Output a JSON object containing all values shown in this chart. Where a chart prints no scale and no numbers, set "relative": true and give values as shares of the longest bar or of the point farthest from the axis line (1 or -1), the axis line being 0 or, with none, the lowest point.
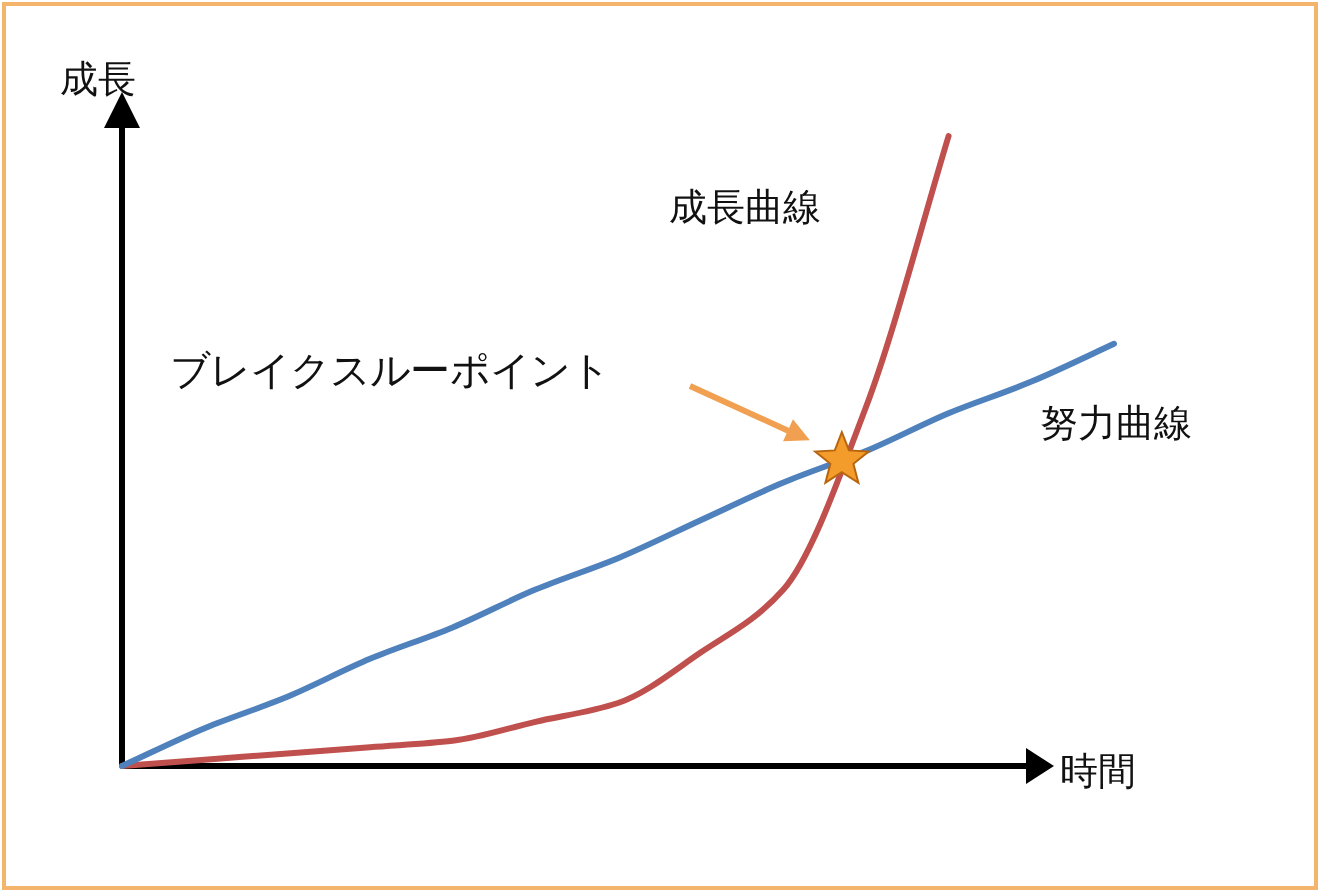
{
  "chart_data": {
    "type": "line",
    "xlabel": "時間",
    "ylabel": "成長",
    "annotations": [
      "ブレイクスルーポイント"
    ],
    "categories": [
      null,
      null,
      null,
      null,
      null,
      null,
      null,
      null,
      null,
      null,
      null,
      null,
      null
    ],
    "relative": true,
    "legend": false,
    "grid": false,
    "line_style": "solid",
    "marker": "none",
    "series": [
      {
        "name": "成長曲線",
        "color": "#c0504d",
        "values": [
          0,
          0.01,
          0.02,
          0.03,
          0.04,
          0.07,
          0.1,
          0.18,
          0.28,
          0.57,
          1,
          null,
          null
        ]
      },
      {
        "name": "努力曲線",
        "color": "#4f81bd",
        "values": [
          0,
          0.06,
          0.11,
          0.17,
          0.22,
          0.28,
          0.33,
          0.39,
          0.45,
          0.5,
          0.56,
          0.61,
          0.67
        ]
      }
    ]
  }
}
